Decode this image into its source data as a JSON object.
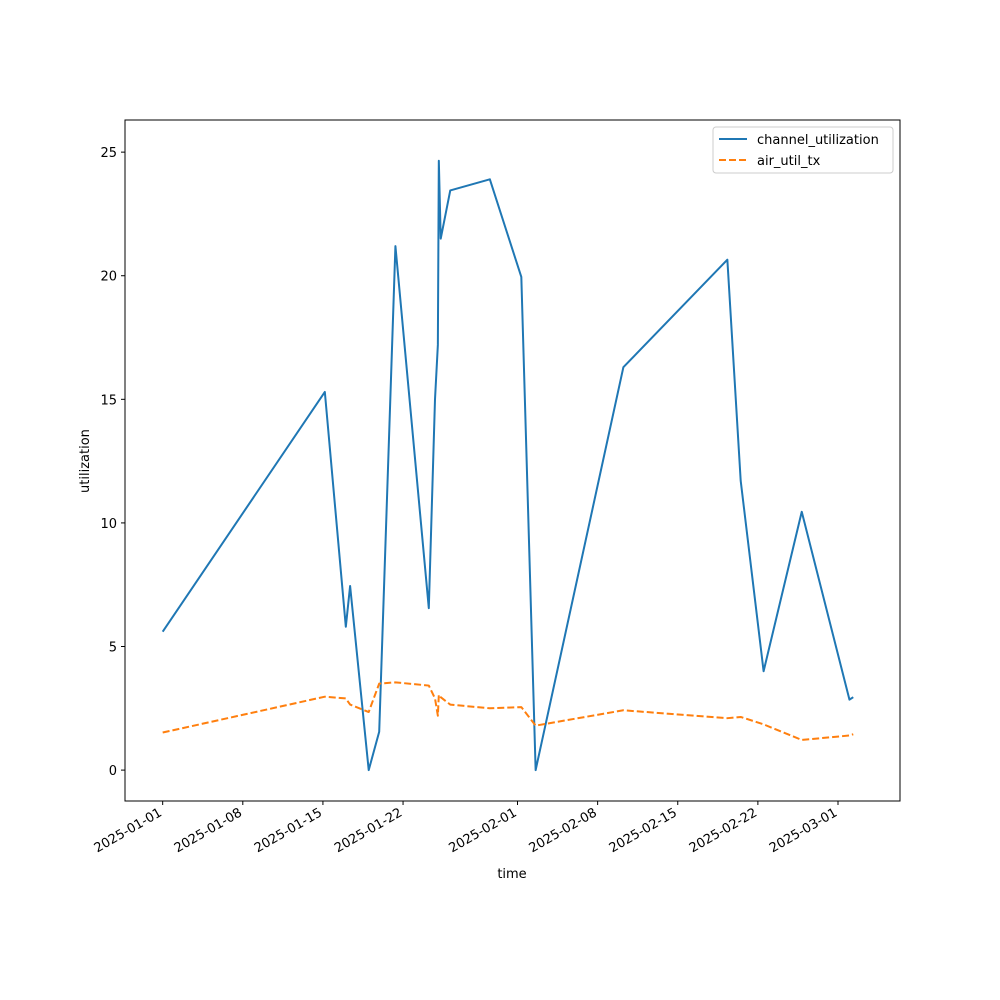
{
  "chart_data": {
    "type": "line",
    "title": "",
    "xlabel": "time",
    "ylabel": "utilization",
    "xlim": [
      "2024-12-28T17:00",
      "2025-03-06T10:00"
    ],
    "ylim": [
      -1.25,
      26.3
    ],
    "x_ticks": [
      "2025-01-01",
      "2025-01-08",
      "2025-01-15",
      "2025-01-22",
      "2025-02-01",
      "2025-02-08",
      "2025-02-15",
      "2025-02-22",
      "2025-03-01"
    ],
    "y_ticks": [
      0,
      5,
      10,
      15,
      20,
      25
    ],
    "grid": false,
    "legend_position": "top-right",
    "series": [
      {
        "name": "channel_utilization",
        "color": "#1f77b4",
        "style": "solid",
        "points": [
          {
            "x": "2025-01-01T00:00",
            "y": 5.6
          },
          {
            "x": "2025-01-15T04:00",
            "y": 15.3
          },
          {
            "x": "2025-01-17T00:00",
            "y": 5.8
          },
          {
            "x": "2025-01-17T09:00",
            "y": 7.45
          },
          {
            "x": "2025-01-19T00:00",
            "y": 0.0
          },
          {
            "x": "2025-01-19T22:00",
            "y": 1.55
          },
          {
            "x": "2025-01-21T08:00",
            "y": 21.2
          },
          {
            "x": "2025-01-24T06:00",
            "y": 6.55
          },
          {
            "x": "2025-01-24T19:00",
            "y": 15.0
          },
          {
            "x": "2025-01-25T01:00",
            "y": 17.2
          },
          {
            "x": "2025-01-25T03:00",
            "y": 24.65
          },
          {
            "x": "2025-01-25T07:00",
            "y": 21.5
          },
          {
            "x": "2025-01-26T03:00",
            "y": 23.45
          },
          {
            "x": "2025-01-29T14:00",
            "y": 23.9
          },
          {
            "x": "2025-02-01T08:00",
            "y": 19.95
          },
          {
            "x": "2025-02-02T14:00",
            "y": 0.0
          },
          {
            "x": "2025-02-10T06:00",
            "y": 16.3
          },
          {
            "x": "2025-02-19T08:00",
            "y": 20.65
          },
          {
            "x": "2025-02-20T12:00",
            "y": 11.7
          },
          {
            "x": "2025-02-22T12:00",
            "y": 4.0
          },
          {
            "x": "2025-02-25T20:00",
            "y": 10.45
          },
          {
            "x": "2025-03-02T00:00",
            "y": 2.85
          },
          {
            "x": "2025-03-02T08:00",
            "y": 2.95
          }
        ]
      },
      {
        "name": "air_util_tx",
        "color": "#ff7f0e",
        "style": "dashed",
        "points": [
          {
            "x": "2025-01-01T00:00",
            "y": 1.52
          },
          {
            "x": "2025-01-15T04:00",
            "y": 2.97
          },
          {
            "x": "2025-01-17T00:00",
            "y": 2.9
          },
          {
            "x": "2025-01-17T09:00",
            "y": 2.65
          },
          {
            "x": "2025-01-19T00:00",
            "y": 2.35
          },
          {
            "x": "2025-01-19T22:00",
            "y": 3.5
          },
          {
            "x": "2025-01-21T08:00",
            "y": 3.55
          },
          {
            "x": "2025-01-24T06:00",
            "y": 3.42
          },
          {
            "x": "2025-01-24T19:00",
            "y": 2.9
          },
          {
            "x": "2025-01-25T01:00",
            "y": 2.2
          },
          {
            "x": "2025-01-25T03:00",
            "y": 3.05
          },
          {
            "x": "2025-01-25T07:00",
            "y": 2.95
          },
          {
            "x": "2025-01-26T03:00",
            "y": 2.65
          },
          {
            "x": "2025-01-29T14:00",
            "y": 2.5
          },
          {
            "x": "2025-02-01T08:00",
            "y": 2.55
          },
          {
            "x": "2025-02-02T14:00",
            "y": 1.8
          },
          {
            "x": "2025-02-10T06:00",
            "y": 2.42
          },
          {
            "x": "2025-02-19T08:00",
            "y": 2.1
          },
          {
            "x": "2025-02-20T12:00",
            "y": 2.15
          },
          {
            "x": "2025-02-22T12:00",
            "y": 1.85
          },
          {
            "x": "2025-02-25T20:00",
            "y": 1.22
          },
          {
            "x": "2025-03-02T00:00",
            "y": 1.4
          },
          {
            "x": "2025-03-02T08:00",
            "y": 1.45
          }
        ]
      }
    ]
  }
}
